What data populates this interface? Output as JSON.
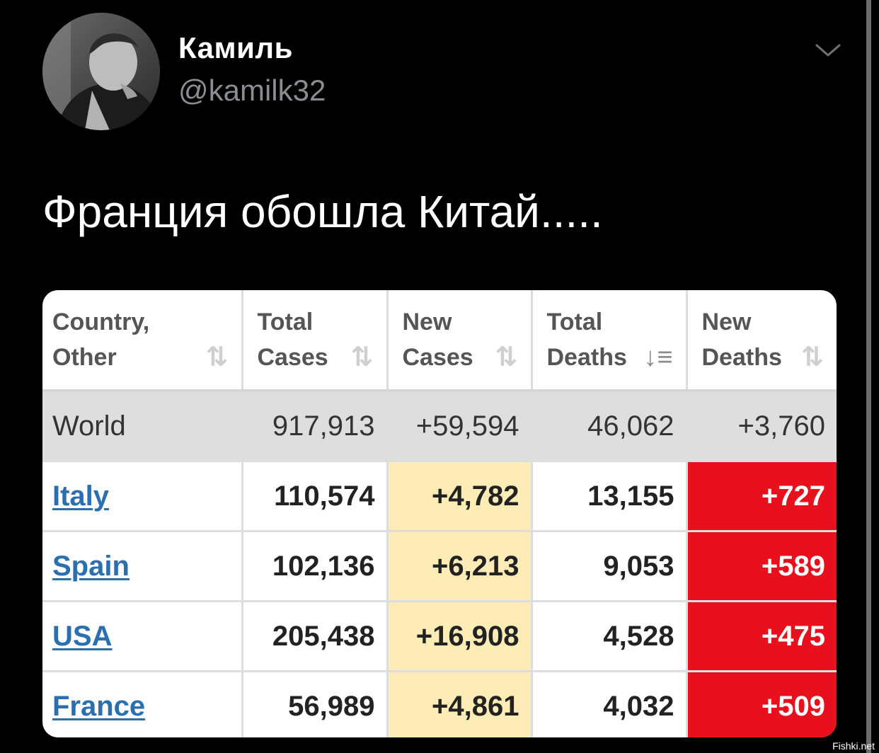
{
  "tweet": {
    "display_name": "Камиль",
    "handle": "@kamilk32",
    "text": "Франция обошла Китай.....",
    "menu_icon": "chevron-down-icon"
  },
  "table": {
    "headers": [
      {
        "line1": "Country,",
        "line2": "Other",
        "sort_icon": "sort-icon"
      },
      {
        "line1": "Total",
        "line2": "Cases",
        "sort_icon": "sort-icon"
      },
      {
        "line1": "New",
        "line2": "Cases",
        "sort_icon": "sort-icon"
      },
      {
        "line1": "Total",
        "line2": "Deaths",
        "sort_icon": "sort-desc-icon"
      },
      {
        "line1": "New",
        "line2": "Deaths",
        "sort_icon": "sort-icon"
      }
    ],
    "world": {
      "country": "World",
      "total_cases": "917,913",
      "new_cases": "+59,594",
      "total_deaths": "46,062",
      "new_deaths": "+3,760"
    },
    "rows": [
      {
        "country": "Italy",
        "total_cases": "110,574",
        "new_cases": "+4,782",
        "total_deaths": "13,155",
        "new_deaths": "+727"
      },
      {
        "country": "Spain",
        "total_cases": "102,136",
        "new_cases": "+6,213",
        "total_deaths": "9,053",
        "new_deaths": "+589"
      },
      {
        "country": "USA",
        "total_cases": "205,438",
        "new_cases": "+16,908",
        "total_deaths": "4,528",
        "new_deaths": "+475"
      },
      {
        "country": "France",
        "total_cases": "56,989",
        "new_cases": "+4,861",
        "total_deaths": "4,032",
        "new_deaths": "+509"
      }
    ],
    "colors": {
      "new_cases_bg": "#fdecb5",
      "new_deaths_bg": "#e8101c",
      "link": "#2a6fb0",
      "world_row_bg": "#dedede"
    }
  },
  "watermark": "Fishki.net"
}
